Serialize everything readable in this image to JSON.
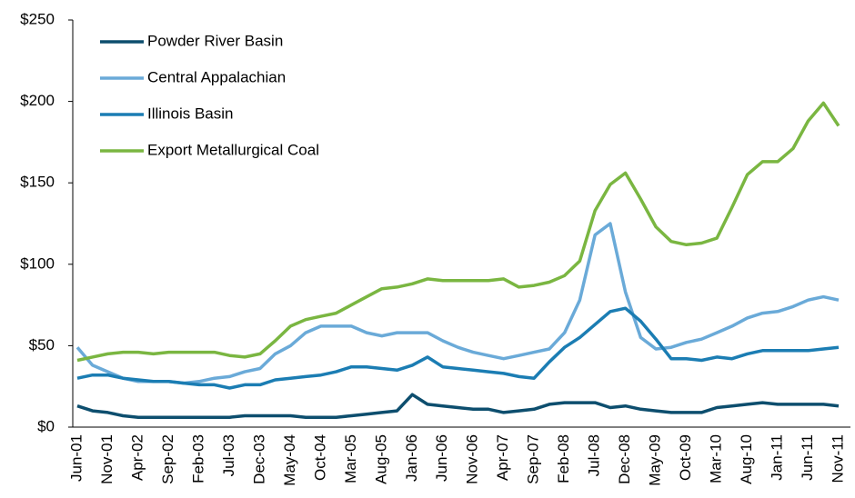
{
  "chart_data": {
    "type": "line",
    "categories": [
      "Jun-01",
      null,
      "Nov-01",
      null,
      "Apr-02",
      null,
      "Sep-02",
      null,
      "Feb-03",
      null,
      "Jul-03",
      null,
      "Dec-03",
      null,
      "May-04",
      null,
      "Oct-04",
      null,
      "Mar-05",
      null,
      "Aug-05",
      null,
      "Jan-06",
      null,
      "Jun-06",
      null,
      "Nov-06",
      null,
      "Apr-07",
      null,
      "Sep-07",
      null,
      "Feb-08",
      null,
      "Jul-08",
      null,
      "Dec-08",
      null,
      "May-09",
      null,
      "Oct-09",
      null,
      "Mar-10",
      null,
      "Aug-10",
      null,
      "Jan-11",
      null,
      "Jun-11",
      null,
      "Nov-11"
    ],
    "series": [
      {
        "name": "Powder River Basin",
        "color": "#0d4e6e",
        "values": [
          13,
          10,
          9,
          7,
          6,
          6,
          6,
          6,
          6,
          6,
          6,
          7,
          7,
          7,
          7,
          6,
          6,
          6,
          7,
          8,
          9,
          10,
          20,
          14,
          13,
          12,
          11,
          11,
          9,
          10,
          11,
          14,
          15,
          15,
          15,
          12,
          13,
          11,
          10,
          9,
          9,
          9,
          12,
          13,
          14,
          15,
          14,
          14,
          14,
          14,
          13
        ]
      },
      {
        "name": "Central Appalachian",
        "color": "#6aaad8",
        "values": [
          49,
          38,
          34,
          30,
          28,
          28,
          28,
          27,
          28,
          30,
          31,
          34,
          36,
          45,
          50,
          58,
          62,
          62,
          62,
          58,
          56,
          58,
          58,
          58,
          53,
          49,
          46,
          44,
          42,
          44,
          46,
          48,
          58,
          78,
          118,
          125,
          83,
          55,
          48,
          49,
          52,
          54,
          58,
          62,
          67,
          70,
          71,
          74,
          78,
          80,
          78
        ]
      },
      {
        "name": "Illinois Basin",
        "color": "#1b7db3",
        "values": [
          30,
          32,
          32,
          30,
          29,
          28,
          28,
          27,
          26,
          26,
          24,
          26,
          26,
          29,
          30,
          31,
          32,
          34,
          37,
          37,
          36,
          35,
          38,
          43,
          37,
          36,
          35,
          34,
          33,
          31,
          30,
          40,
          49,
          55,
          63,
          71,
          73,
          65,
          54,
          42,
          42,
          41,
          43,
          42,
          45,
          47,
          47,
          47,
          47,
          48,
          49
        ]
      },
      {
        "name": "Export Metallurgical Coal",
        "color": "#7ab641",
        "values": [
          41,
          43,
          45,
          46,
          46,
          45,
          46,
          46,
          46,
          46,
          44,
          43,
          45,
          53,
          62,
          66,
          68,
          70,
          75,
          80,
          85,
          86,
          88,
          91,
          90,
          90,
          90,
          90,
          91,
          86,
          87,
          89,
          93,
          102,
          133,
          149,
          156,
          140,
          123,
          114,
          112,
          113,
          116,
          135,
          155,
          163,
          163,
          171,
          188,
          199,
          185
        ]
      }
    ],
    "ylim": [
      0,
      250
    ],
    "yticks": [
      {
        "value": 0,
        "label": "$0"
      },
      {
        "value": 50,
        "label": "$50"
      },
      {
        "value": 100,
        "label": "$100"
      },
      {
        "value": 150,
        "label": "$150"
      },
      {
        "value": 200,
        "label": "$200"
      },
      {
        "value": 250,
        "label": "$250"
      }
    ],
    "grid": false,
    "legend": "top-left"
  }
}
